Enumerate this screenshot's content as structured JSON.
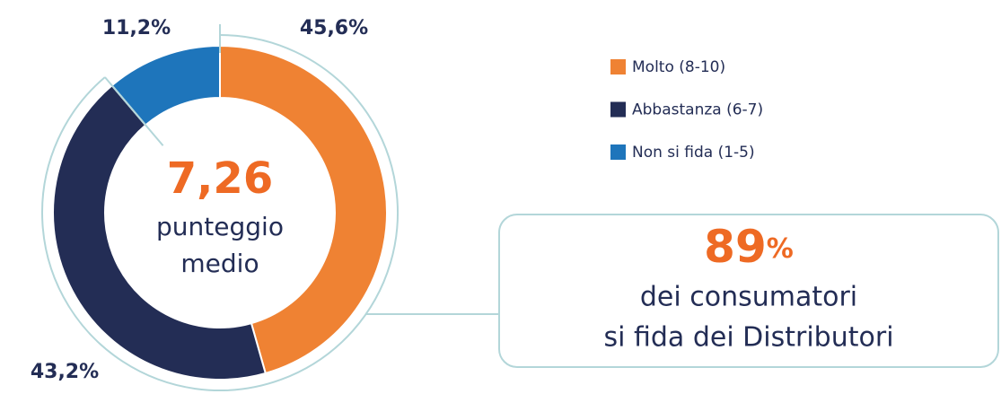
{
  "chart_data": {
    "type": "pie",
    "categories": [
      "Molto (8-10)",
      "Abbastanza (6-7)",
      "Non si fida (1-5)"
    ],
    "values": [
      45.6,
      43.2,
      11.2
    ],
    "value_labels": [
      "45,6%",
      "43,2%",
      "11,2%"
    ],
    "colors": [
      "#ef8233",
      "#232d55",
      "#1e75bb"
    ],
    "center_value": "7,26",
    "center_label": [
      "punteggio",
      "medio"
    ],
    "callout": {
      "value": "89",
      "unit": "%",
      "lines": [
        "dei consumatori",
        "si fida dei Distributori"
      ]
    },
    "legend": "top-right"
  }
}
